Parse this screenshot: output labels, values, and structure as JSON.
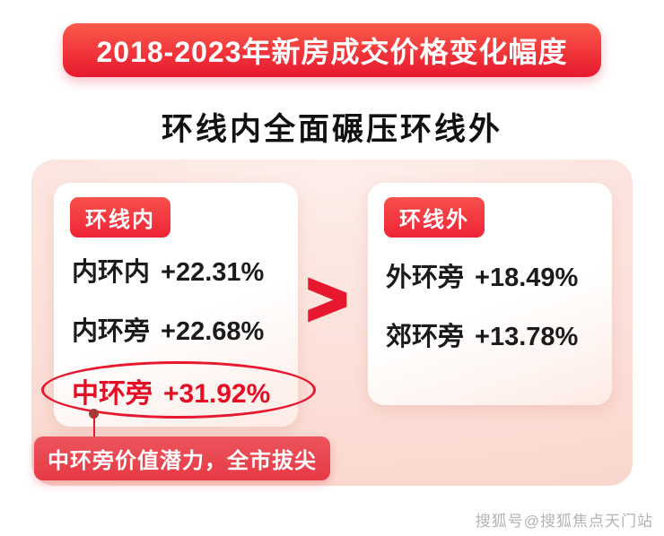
{
  "banner": {
    "title": "2018-2023年新房成交价格变化幅度"
  },
  "subtitle": "环线内全面碾压环线外",
  "comparison": {
    "left": {
      "badge": "环线内",
      "rows": [
        {
          "label": "内环内",
          "value": "+22.31%"
        },
        {
          "label": "内环旁",
          "value": "+22.68%"
        },
        {
          "label": "中环旁",
          "value": "+31.92%"
        }
      ]
    },
    "operator": ">",
    "right": {
      "badge": "环线外",
      "rows": [
        {
          "label": "外环旁",
          "value": "+18.49%"
        },
        {
          "label": "郊环旁",
          "value": "+13.78%"
        }
      ]
    }
  },
  "callout": "中环旁价值潜力，全市拔尖",
  "watermark": "搜狐号@搜狐焦点天门站",
  "colors": {
    "banner_red": "#e7182d",
    "panel_pink": "#fbdcd4",
    "highlight_red": "#e60c24",
    "callout_red": "#e63a46"
  },
  "chart_data": {
    "type": "table",
    "title": "2018-2023年新房成交价格变化幅度",
    "subtitle": "环线内全面碾压环线外",
    "unit": "%",
    "groups": [
      {
        "name": "环线内",
        "categories": [
          "内环内",
          "内环旁",
          "中环旁"
        ],
        "values": [
          22.31,
          22.68,
          31.92
        ],
        "highlighted_category": "中环旁"
      },
      {
        "name": "环线外",
        "categories": [
          "外环旁",
          "郊环旁"
        ],
        "values": [
          18.49,
          13.78
        ]
      }
    ],
    "relation": "环线内 > 环线外",
    "annotation": "中环旁价值潜力，全市拔尖"
  }
}
